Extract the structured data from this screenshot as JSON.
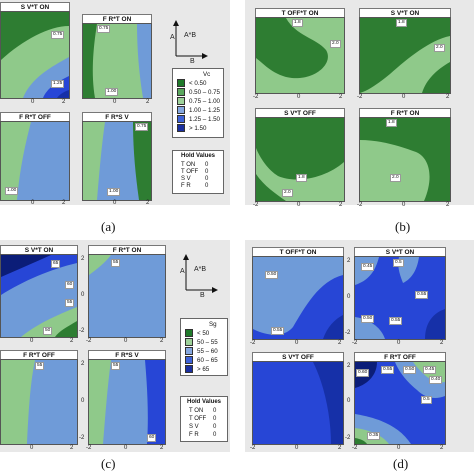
{
  "colors": {
    "c1": "#2e7d32",
    "c2": "#8fc98a",
    "c3": "#6f9bd8",
    "c4": "#2746d6",
    "c5": "#1630a8",
    "c6": "#0b1d78",
    "sa": "#1f7a2a",
    "sb": "#5aa85e",
    "sc": "#9ed29a",
    "sd": "#86a8e0",
    "se": "#3e62d8",
    "sf": "#1a2fa0"
  },
  "chart_data": [
    {
      "type": "contour",
      "panel": "(a)",
      "subplots": [
        {
          "title": "S V*T ON",
          "x_ticks": [
            "0",
            "2"
          ],
          "y_ticks": [],
          "contour_labels": [
            "0.75",
            "1.25"
          ]
        },
        {
          "title": "F R*T ON",
          "x_ticks": [
            "0",
            "2"
          ],
          "y_ticks": [],
          "contour_labels": [
            "0.75",
            "1.00"
          ]
        },
        {
          "title": "F R*T OFF",
          "x_ticks": [
            "0",
            "2"
          ],
          "y_ticks": [],
          "contour_labels": [
            "1.00"
          ]
        },
        {
          "title": "F R*S V",
          "x_ticks": [
            "0",
            "2"
          ],
          "y_ticks": [],
          "contour_labels": [
            "1.00",
            "0.75"
          ]
        }
      ],
      "axis_icon": {
        "y": "A",
        "diag": "A*B",
        "x": "B"
      },
      "legend": {
        "title": "Vc",
        "entries": [
          {
            "label": "<",
            "value": "0.50"
          },
          {
            "label": "0.50 –",
            "value": "0.75"
          },
          {
            "label": "0.75 –",
            "value": "1.00"
          },
          {
            "label": "1.00 –",
            "value": "1.25"
          },
          {
            "label": "1.25 –",
            "value": "1.50"
          },
          {
            "label": ">",
            "value": "1.50"
          }
        ]
      },
      "hold_values": {
        "title": "Hold Values",
        "rows": [
          {
            "name": "T ON",
            "value": "0"
          },
          {
            "name": "T OFF",
            "value": "0"
          },
          {
            "name": "S V",
            "value": "0"
          },
          {
            "name": "F R",
            "value": "0"
          }
        ]
      },
      "caption": "(a)"
    },
    {
      "type": "contour",
      "panel": "(b)",
      "subplots": [
        {
          "title": "T OFF*T ON",
          "x_ticks": [
            "-2",
            "0",
            "2"
          ],
          "y_ticks": [],
          "contour_labels": [
            "1.8",
            "2.0"
          ]
        },
        {
          "title": "S V*T ON",
          "x_ticks": [
            "-2",
            "0",
            "2"
          ],
          "y_ticks": [],
          "contour_labels": [
            "1.8",
            "2.0"
          ]
        },
        {
          "title": "S V*T OFF",
          "x_ticks": [
            "-2",
            "0",
            "2"
          ],
          "y_ticks": [],
          "contour_labels": [
            "1.8",
            "2.0"
          ]
        },
        {
          "title": "F R*T ON",
          "x_ticks": [
            "-2",
            "0",
            "2"
          ],
          "y_ticks": [],
          "contour_labels": [
            "1.8",
            "2.0"
          ]
        }
      ],
      "caption": "(b)"
    },
    {
      "type": "contour",
      "panel": "(c)",
      "subplots": [
        {
          "title": "S V*T ON",
          "x_ticks": [
            "0",
            "2"
          ],
          "y_ticks": [],
          "contour_labels": [
            "65",
            "60",
            "55",
            "50"
          ]
        },
        {
          "title": "F R*T ON",
          "x_ticks": [
            "-2",
            "0",
            "2"
          ],
          "y_ticks": [
            "-2",
            "0",
            "2"
          ],
          "contour_labels": [
            "55"
          ]
        },
        {
          "title": "F R*T OFF",
          "x_ticks": [
            "0",
            "2"
          ],
          "y_ticks": [],
          "contour_labels": [
            "55"
          ]
        },
        {
          "title": "F R*S V",
          "x_ticks": [
            "-2",
            "0",
            "2"
          ],
          "y_ticks": [
            "-2",
            "0",
            "2"
          ],
          "contour_labels": [
            "55",
            "60"
          ]
        }
      ],
      "axis_icon": {
        "y": "A",
        "diag": "A*B",
        "x": "B"
      },
      "legend": {
        "title": "Sg",
        "entries": [
          {
            "label": "<",
            "value": "50"
          },
          {
            "label": "50 –",
            "value": "55"
          },
          {
            "label": "55 –",
            "value": "60"
          },
          {
            "label": "60 –",
            "value": "65"
          },
          {
            "label": ">",
            "value": "65"
          }
        ]
      },
      "hold_values": {
        "title": "Hold Values",
        "rows": [
          {
            "name": "T ON",
            "value": "0"
          },
          {
            "name": "T OFF",
            "value": "0"
          },
          {
            "name": "S V",
            "value": "0"
          },
          {
            "name": "F R",
            "value": "0"
          }
        ]
      },
      "caption": "(c)"
    },
    {
      "type": "contour",
      "panel": "(d)",
      "subplots": [
        {
          "title": "T OFF*T ON",
          "x_ticks": [
            "-2",
            "0",
            "2"
          ],
          "y_ticks": [],
          "contour_labels": [
            "0.50",
            "0.55"
          ]
        },
        {
          "title": "S V*T ON",
          "x_ticks": [
            "-2",
            "0",
            "2"
          ],
          "y_ticks": [
            "-2",
            "0",
            "2"
          ],
          "contour_labels": [
            "0.45",
            "0.5",
            "0.55",
            "0.50",
            "0.55"
          ]
        },
        {
          "title": "S V*T OFF",
          "x_ticks": [
            "-2",
            "0",
            "2"
          ],
          "y_ticks": [],
          "contour_labels": []
        },
        {
          "title": "F R*T OFF",
          "x_ticks": [
            "-2",
            "0",
            "2"
          ],
          "y_ticks": [
            "-2",
            "0",
            "2"
          ],
          "contour_labels": [
            "0.60",
            "0.55",
            "0.50",
            "0.45",
            "0.40",
            "0.5",
            "0.35"
          ]
        }
      ],
      "caption": "(d)"
    }
  ]
}
